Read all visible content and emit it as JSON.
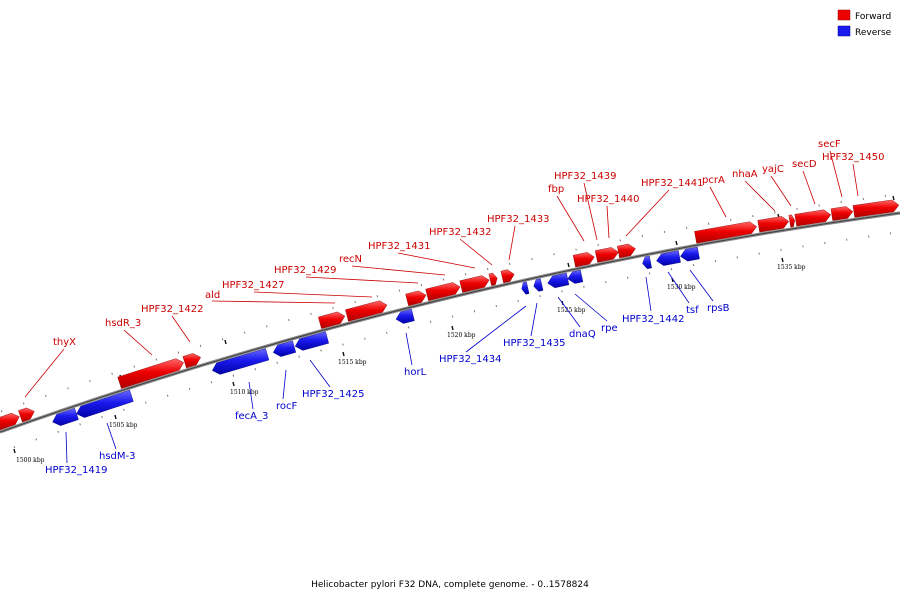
{
  "legend": {
    "forward_label": "Forward",
    "reverse_label": "Reverse",
    "forward_color": "#ee0000",
    "reverse_color": "#1a1aee"
  },
  "caption": "Helicobacter pylori F32 DNA, complete genome. - 0..1578824",
  "axis": {
    "tick_labels": [
      "1500 kbp",
      "1505 kbp",
      "1510 kbp",
      "1515 kbp",
      "1520 kbp",
      "1525 kbp",
      "1530 kbp",
      "1535 kbp"
    ]
  },
  "genes_forward": [
    {
      "label": "thyX"
    },
    {
      "label": "hsdR_3"
    },
    {
      "label": "HPF32_1422"
    },
    {
      "label": "ald"
    },
    {
      "label": "HPF32_1427"
    },
    {
      "label": "HPF32_1429"
    },
    {
      "label": "recN"
    },
    {
      "label": "HPF32_1431"
    },
    {
      "label": "HPF32_1432"
    },
    {
      "label": "HPF32_1433"
    },
    {
      "label": "fbp"
    },
    {
      "label": "HPF32_1439"
    },
    {
      "label": "HPF32_1440"
    },
    {
      "label": "HPF32_1441"
    },
    {
      "label": "pcrA"
    },
    {
      "label": "nhaA"
    },
    {
      "label": "yajC"
    },
    {
      "label": "secD"
    },
    {
      "label": "secF"
    },
    {
      "label": "HPF32_1450"
    }
  ],
  "genes_reverse": [
    {
      "label": "HPF32_1419"
    },
    {
      "label": "hsdM-3"
    },
    {
      "label": "fecA_3"
    },
    {
      "label": "rocF"
    },
    {
      "label": "HPF32_1425"
    },
    {
      "label": "horL"
    },
    {
      "label": "HPF32_1434"
    },
    {
      "label": "HPF32_1435"
    },
    {
      "label": "dnaQ"
    },
    {
      "label": "rpe"
    },
    {
      "label": "HPF32_1442"
    },
    {
      "label": "tsf"
    },
    {
      "label": "rpsB"
    }
  ]
}
